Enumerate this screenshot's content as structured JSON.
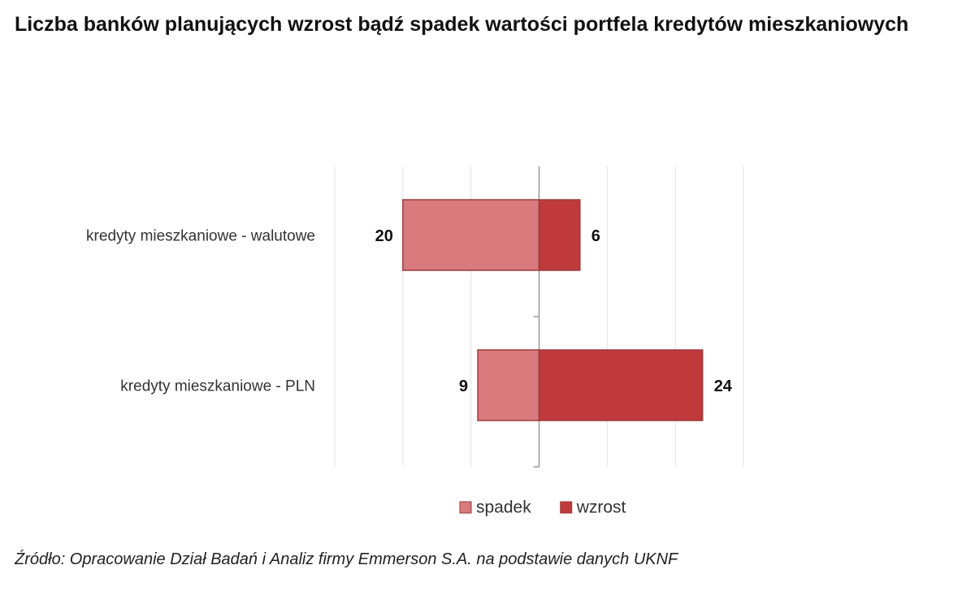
{
  "chart_data": {
    "type": "diverging-bar",
    "title": "Liczba banków planujących wzrost bądź spadek wartości portfela kredytów mieszkaniowych",
    "categories": [
      "kredyty mieszkaniowe - walutowe",
      "kredyty mieszkaniowe - PLN"
    ],
    "series": [
      {
        "name": "spadek",
        "color": "#d97a7c",
        "values": [
          -20,
          -9
        ],
        "value_labels": [
          "20",
          "9"
        ]
      },
      {
        "name": "wzrost",
        "color": "#c0393b",
        "values": [
          6,
          24
        ]
      }
    ],
    "xlim": [
      -30,
      30
    ],
    "xticks": [
      -30,
      -20,
      -10,
      0,
      10,
      20,
      30
    ],
    "grid": true,
    "legend": "bottom",
    "source": "Źródło: Opracowanie Dział Badań i Analiz firmy Emmerson S.A. na podstawie danych UKNF"
  }
}
